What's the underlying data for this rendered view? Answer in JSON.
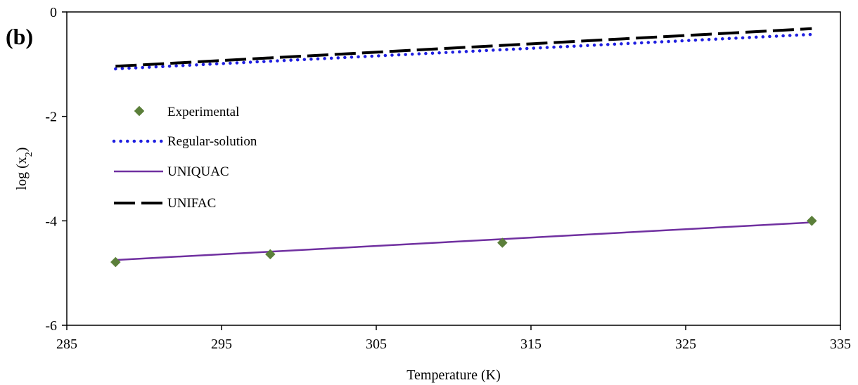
{
  "chart_data": {
    "type": "line",
    "panel_label": "(b)",
    "xlabel": "Temperature (K)",
    "ylabel": "log (x",
    "ylabel_sub": "2",
    "ylabel_close": ")",
    "xlim": [
      285,
      335
    ],
    "ylim": [
      -6,
      0
    ],
    "x_ticks": [
      "285",
      "295",
      "305",
      "315",
      "325",
      "335"
    ],
    "y_ticks": [
      "0",
      "-2",
      "-4",
      "-6"
    ],
    "grid": false,
    "legend_position": "left",
    "series": [
      {
        "name": "Experimental",
        "style": "marker",
        "color": "#5b7f3a",
        "x": [
          288.15,
          298.15,
          313.15,
          333.15
        ],
        "y": [
          -4.79,
          -4.64,
          -4.42,
          -4.0
        ]
      },
      {
        "name": "Regular-solution",
        "style": "dotted",
        "color": "#1f1fe0",
        "x": [
          288.15,
          333.15
        ],
        "y": [
          -1.09,
          -0.43
        ]
      },
      {
        "name": "UNIQUAC",
        "style": "solid",
        "color": "#7030a0",
        "x": [
          288.15,
          333.15
        ],
        "y": [
          -4.75,
          -4.03
        ]
      },
      {
        "name": "UNIFAC",
        "style": "dashed",
        "color": "#000000",
        "x": [
          288.15,
          333.15
        ],
        "y": [
          -1.04,
          -0.32
        ]
      }
    ]
  }
}
